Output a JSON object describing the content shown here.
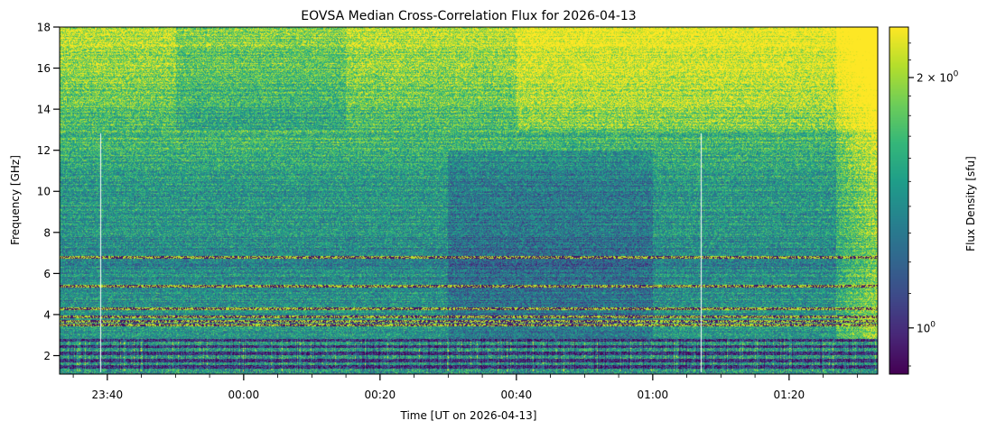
{
  "chart_data": {
    "type": "heatmap",
    "title": "EOVSA Median Cross-Correlation Flux for 2026-04-13",
    "xlabel": "Time [UT on 2026-04-13]",
    "ylabel": "Frequency [GHz]",
    "colorbar_label": "Flux Density [sfu]",
    "colormap": "viridis",
    "color_scale": "log",
    "colorbar_range": [
      0.88,
      2.3
    ],
    "colorbar_ticks": [
      {
        "label": "$2\\times10^{0}$",
        "base": "2 × 10",
        "exp": "0",
        "value": 2.0
      },
      {
        "label": "$10^{0}$",
        "base": "10",
        "exp": "0",
        "value": 1.0
      }
    ],
    "x_range": [
      "23:33",
      "01:33"
    ],
    "x_ticks": [
      "23:40",
      "00:00",
      "00:20",
      "00:40",
      "01:00",
      "01:20"
    ],
    "y_range": [
      1.1,
      18.0
    ],
    "y_ticks": [
      2,
      4,
      6,
      8,
      10,
      12,
      14,
      16,
      18
    ],
    "features": {
      "low_frequency_band_GHz": [
        1.2,
        2.8
      ],
      "rfi_lines_GHz": [
        3.5,
        3.7,
        3.9,
        4.3,
        5.4,
        6.8
      ],
      "bright_upper_band_GHz": [
        14.0,
        18.0
      ],
      "gap_lines_time": [
        "23:39",
        "01:07"
      ],
      "bright_region_after": "01:27"
    }
  }
}
